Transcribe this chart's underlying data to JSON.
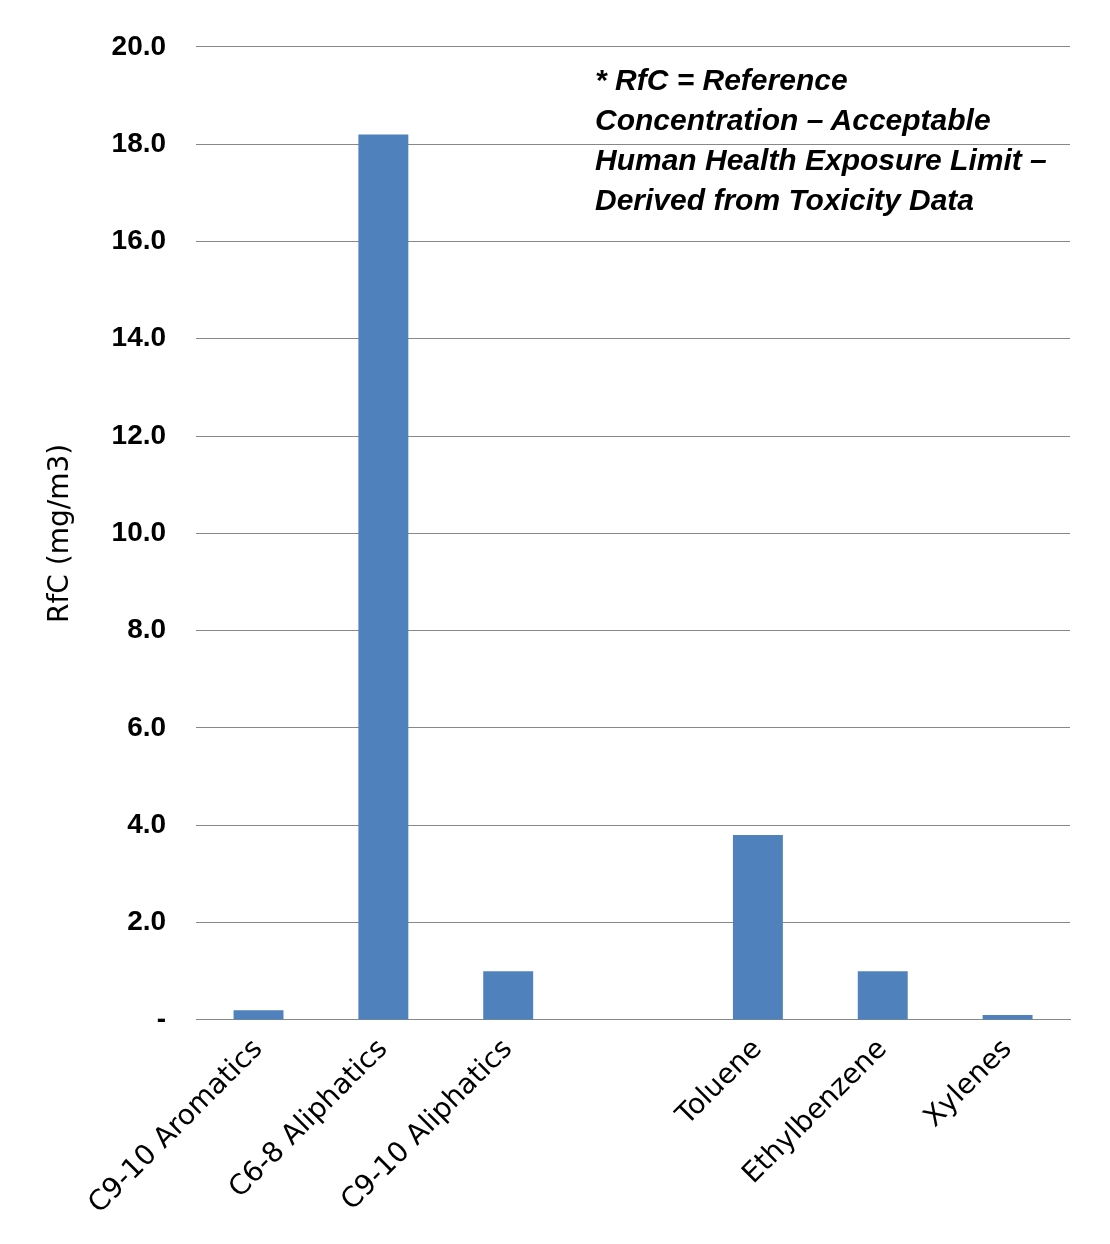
{
  "chart_data": {
    "type": "bar",
    "ylabel": "RfC (mg/m3)",
    "categories": [
      "C9-10 Aromatics",
      "C6-8 Aliphatics",
      "C9-10 Aliphatics",
      null,
      "Toluene",
      "Ethylbenzene",
      "Xylenes"
    ],
    "values": [
      0.2,
      18.2,
      1.0,
      null,
      3.8,
      1.0,
      0.1
    ],
    "color": "#4f81bd",
    "ylim": [
      0,
      20
    ],
    "yticks": [
      {
        "value": 0,
        "label": "-"
      },
      {
        "value": 2,
        "label": "2.0"
      },
      {
        "value": 4,
        "label": "4.0"
      },
      {
        "value": 6,
        "label": "6.0"
      },
      {
        "value": 8,
        "label": "8.0"
      },
      {
        "value": 10,
        "label": "10.0"
      },
      {
        "value": 12,
        "label": "12.0"
      },
      {
        "value": 14,
        "label": "14.0"
      },
      {
        "value": 16,
        "label": "16.0"
      },
      {
        "value": 18,
        "label": "18.0"
      },
      {
        "value": 20,
        "label": "20.0"
      }
    ],
    "grid": "y",
    "annotations": [
      "* RfC = Reference Concentration – Acceptable Human Health Exposure Limit – Derived from Toxicity Data"
    ]
  }
}
